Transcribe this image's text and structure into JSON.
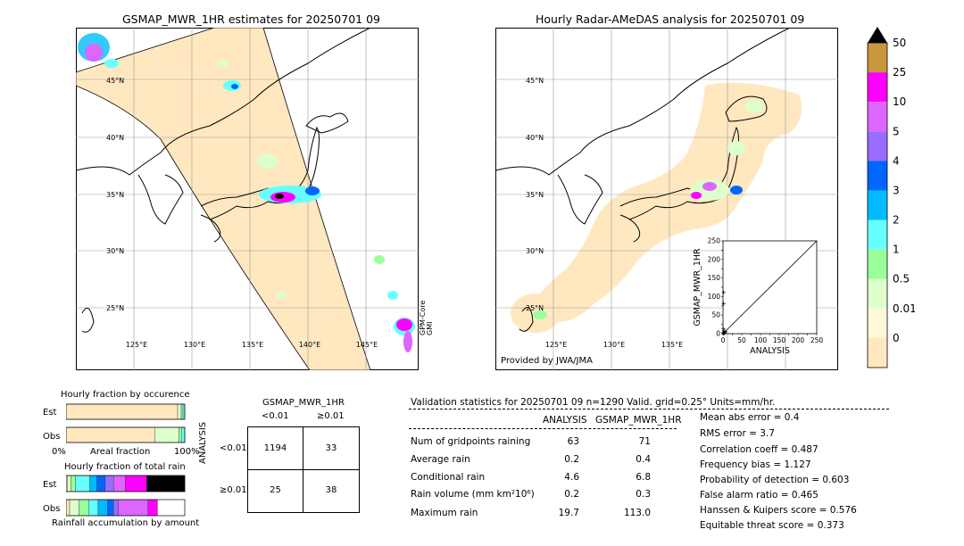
{
  "left_map": {
    "title": "GSMAP_MWR_1HR estimates for 20250701 09",
    "lat_labels": [
      "45°N",
      "40°N",
      "35°N",
      "30°N",
      "25°N"
    ],
    "lon_labels": [
      "125°E",
      "130°E",
      "135°E",
      "140°E",
      "145°E"
    ],
    "swath_label": "GPM-Core\nGMI"
  },
  "right_map": {
    "title": "Hourly Radar-AMeDAS analysis for 20250701 09",
    "lat_labels": [
      "45°N",
      "40°N",
      "35°N",
      "30°N",
      "25°N"
    ],
    "lon_labels": [
      "125°E",
      "130°E",
      "135°E"
    ],
    "credit": "Provided by JWA/JMA"
  },
  "colorbar": {
    "labels": [
      "50",
      "25",
      "10",
      "5",
      "4",
      "3",
      "2",
      "1",
      "0.5",
      "0.01",
      "0"
    ],
    "colors": [
      "#c8963c",
      "#ff00ff",
      "#dd66ff",
      "#9a6cff",
      "#0066ff",
      "#00bbff",
      "#66ffff",
      "#99ff99",
      "#ddffcc",
      "#fff8d8",
      "#ffe8c0"
    ],
    "extend_color": "#000000"
  },
  "chart_data": [
    {
      "type": "scatter",
      "xlabel": "ANALYSIS",
      "ylabel": "GSMAP_MWR_1HR",
      "xlim": [
        0,
        250
      ],
      "ylim": [
        0,
        250
      ],
      "xticks": [
        "0",
        "25",
        "50",
        "75",
        "100",
        "125",
        "150",
        "175",
        "200",
        "225",
        "250"
      ],
      "yticks": [
        "0",
        "25",
        "50",
        "75",
        "100",
        "125",
        "150",
        "175",
        "200",
        "225",
        "250"
      ],
      "points": [
        [
          2,
          112
        ],
        [
          2,
          82
        ],
        [
          1,
          5
        ],
        [
          2,
          2
        ],
        [
          3,
          8
        ],
        [
          1,
          15
        ],
        [
          5,
          4
        ],
        [
          0.5,
          1
        ],
        [
          4,
          1
        ],
        [
          8,
          6
        ]
      ],
      "diagonal": true
    },
    {
      "type": "bar",
      "title": "Hourly fraction by occurence",
      "categories": [
        "Est",
        "Obs"
      ],
      "xlabels": [
        "0%",
        "Areal fraction",
        "100%"
      ],
      "series": [
        {
          "values": [
            0.94,
            0.75
          ]
        },
        {
          "values": [
            0.03,
            0.2
          ]
        },
        {
          "values": [
            0.015,
            0.025
          ]
        },
        {
          "values": [
            0.015,
            0.025
          ]
        }
      ],
      "colors": [
        "#ffe8c0",
        "#ddffcc",
        "#99ff99",
        "#66ffff"
      ]
    },
    {
      "type": "bar",
      "title": "Hourly fraction of total rain",
      "footer": "Rainfall accumulation by amount",
      "categories": [
        "Est",
        "Obs"
      ],
      "colors": [
        "#ffe8c0",
        "#ddffcc",
        "#99ff99",
        "#66ffff",
        "#00bbff",
        "#0066ff",
        "#9a6cff",
        "#dd66ff",
        "#ff00ff",
        "#000000"
      ],
      "series": [
        {
          "values": [
            0.01,
            0.03
          ]
        },
        {
          "values": [
            0.03,
            0.08
          ]
        },
        {
          "values": [
            0.04,
            0.08
          ]
        },
        {
          "values": [
            0.12,
            0.08
          ]
        },
        {
          "values": [
            0.06,
            0.08
          ]
        },
        {
          "values": [
            0.07,
            0.05
          ]
        },
        {
          "values": [
            0.07,
            0.04
          ]
        },
        {
          "values": [
            0.1,
            0.25
          ]
        },
        {
          "values": [
            0.18,
            0.08
          ]
        },
        {
          "values": [
            0.32,
            0.0
          ]
        }
      ]
    },
    {
      "type": "table",
      "title": "GSMAP_MWR_1HR",
      "col_headers": [
        "<0.01",
        "≥0.01"
      ],
      "row_headers": [
        "<0.01",
        "≥0.01"
      ],
      "row_axis_label": "ANALYSIS",
      "cells": [
        [
          "1194",
          "33"
        ],
        [
          "25",
          "38"
        ]
      ]
    }
  ],
  "validation": {
    "header": "Validation statistics for 20250701 09  n=1290 Valid. grid=0.25° Units=mm/hr.",
    "col_analysis": "ANALYSIS",
    "col_gsmap": "GSMAP_MWR_1HR",
    "rows": [
      {
        "label": "Num of gridpoints raining",
        "analysis": "63",
        "gsmap": "71"
      },
      {
        "label": "Average rain",
        "analysis": "0.2",
        "gsmap": "0.4"
      },
      {
        "label": "Conditional rain",
        "analysis": "4.6",
        "gsmap": "6.8"
      },
      {
        "label": "Rain volume (mm km²10⁶)",
        "analysis": "0.2",
        "gsmap": "0.3"
      },
      {
        "label": "Maximum rain",
        "analysis": "19.7",
        "gsmap": "113.0"
      }
    ],
    "scores": [
      "Mean abs error =    0.4",
      "RMS error =    3.7",
      "Correlation coeff =  0.487",
      "Frequency bias =  1.127",
      "Probability of detection =  0.603",
      "False alarm ratio =  0.465",
      "Hanssen & Kuipers score =  0.576",
      "Equitable threat score =  0.373"
    ]
  }
}
